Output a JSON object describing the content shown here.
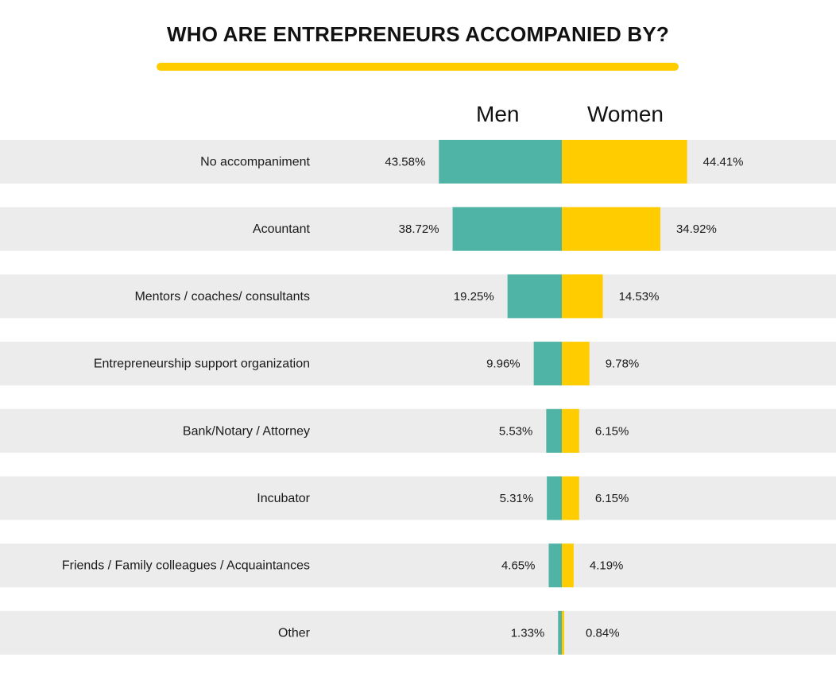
{
  "chart_data": {
    "type": "bar",
    "title": "WHO ARE ENTREPRENEURS ACCOMPANIED BY?",
    "categories": [
      "No accompaniment",
      "Acountant",
      "Mentors / coaches/ consultants",
      "Entrepreneurship support organization",
      "Bank/Notary / Attorney",
      "Incubator",
      "Friends / Family colleagues / Acquaintances",
      "Other"
    ],
    "series": [
      {
        "name": "Men",
        "values": [
          43.58,
          38.72,
          19.25,
          9.96,
          5.53,
          5.31,
          4.65,
          1.33
        ],
        "labels": [
          "43.58%",
          "38.72%",
          "19.25%",
          "9.96%",
          "5.53%",
          "5.31%",
          "4.65%",
          "1.33%"
        ],
        "color": "#4fb3a5"
      },
      {
        "name": "Women",
        "values": [
          44.41,
          34.92,
          14.53,
          9.78,
          6.15,
          6.15,
          4.19,
          0.84
        ],
        "labels": [
          "44.41%",
          "34.92%",
          "14.53%",
          "9.78%",
          "6.15%",
          "6.15%",
          "4.19%",
          "0.84%"
        ],
        "color": "#ffcc00"
      }
    ],
    "orientation": "horizontal-diverging",
    "row_band_color": "#ececec",
    "title_accent_color": "#ffcc00",
    "grid": false
  }
}
